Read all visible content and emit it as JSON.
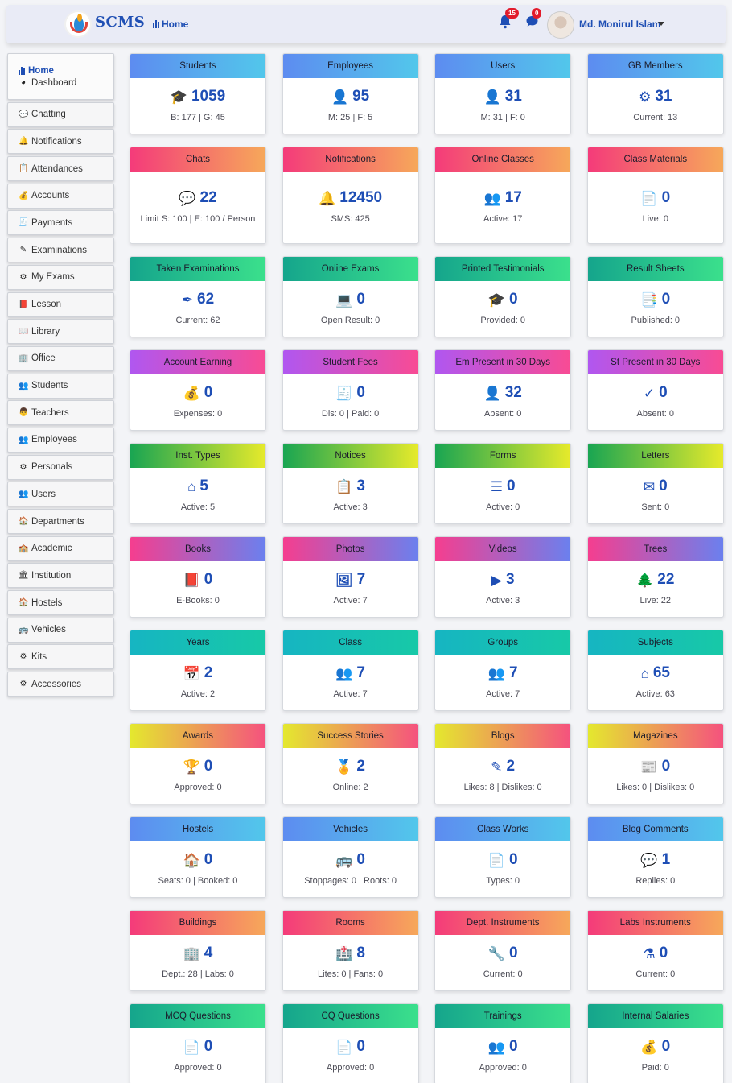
{
  "header": {
    "brand": "SCMS",
    "home_label": "Home",
    "notification_count": "15",
    "message_count": "0",
    "user_name": "Md. Monirul Islam"
  },
  "sidebar": {
    "home": "Home",
    "dashboard": "Dashboard",
    "items": [
      {
        "label": "Chatting",
        "icon": "chat-icon"
      },
      {
        "label": "Notifications",
        "icon": "bell-icon"
      },
      {
        "label": "Attendances",
        "icon": "clipboard-icon"
      },
      {
        "label": "Accounts",
        "icon": "money-bag-icon"
      },
      {
        "label": "Payments",
        "icon": "invoice-icon"
      },
      {
        "label": "Examinations",
        "icon": "pen-icon"
      },
      {
        "label": "My Exams",
        "icon": "user-gear-icon"
      },
      {
        "label": "Lesson",
        "icon": "book-icon"
      },
      {
        "label": "Library",
        "icon": "open-book-icon"
      },
      {
        "label": "Office",
        "icon": "building-icon"
      },
      {
        "label": "Students",
        "icon": "students-icon"
      },
      {
        "label": "Teachers",
        "icon": "teacher-icon"
      },
      {
        "label": "Employees",
        "icon": "employees-icon"
      },
      {
        "label": "Personals",
        "icon": "user-cog-icon"
      },
      {
        "label": "Users",
        "icon": "users-icon"
      },
      {
        "label": "Departments",
        "icon": "house-icon"
      },
      {
        "label": "Academic",
        "icon": "school-icon"
      },
      {
        "label": "Institution",
        "icon": "institution-icon"
      },
      {
        "label": "Hostels",
        "icon": "hostel-icon"
      },
      {
        "label": "Vehicles",
        "icon": "bus-icon"
      },
      {
        "label": "Kits",
        "icon": "gear-icon"
      },
      {
        "label": "Accessories",
        "icon": "cog-icon"
      }
    ]
  },
  "cards": [
    {
      "title": "Students",
      "value": "1059",
      "sub": "B: 177 | G: 45",
      "icon": "graduate-icon",
      "glyph": "🎓",
      "color": "g-blue"
    },
    {
      "title": "Employees",
      "value": "95",
      "sub": "M: 25 | F: 5",
      "icon": "user-icon",
      "glyph": "👤",
      "color": "g-blue"
    },
    {
      "title": "Users",
      "value": "31",
      "sub": "M: 31 | F: 0",
      "icon": "user-icon",
      "glyph": "👤",
      "color": "g-blue"
    },
    {
      "title": "GB Members",
      "value": "31",
      "sub": "Current: 13",
      "icon": "user-gear-icon",
      "glyph": "⚙",
      "color": "g-blue"
    },
    {
      "title": "Chats",
      "value": "22",
      "sub": "Limit S: 100 | E: 100 / Person",
      "icon": "chat-icon",
      "glyph": "💬",
      "color": "g-pink"
    },
    {
      "title": "Notifications",
      "value": "12450",
      "sub": "SMS: 425",
      "icon": "bell-icon",
      "glyph": "🔔",
      "color": "g-pink"
    },
    {
      "title": "Online Classes",
      "value": "17",
      "sub": "Active: 17",
      "icon": "class-icon",
      "glyph": "👥",
      "color": "g-pink"
    },
    {
      "title": "Class Materials",
      "value": "0",
      "sub": "Live: 0",
      "icon": "file-icon",
      "glyph": "📄",
      "color": "g-pink"
    },
    {
      "title": "Taken Examinations",
      "value": "62",
      "sub": "Current: 62",
      "icon": "pen-icon",
      "glyph": "✒",
      "color": "g-green"
    },
    {
      "title": "Online Exams",
      "value": "0",
      "sub": "Open Result: 0",
      "icon": "laptop-icon",
      "glyph": "💻",
      "color": "g-green"
    },
    {
      "title": "Printed Testimonials",
      "value": "0",
      "sub": "Provided: 0",
      "icon": "graduation-cap-icon",
      "glyph": "🎓",
      "color": "g-green"
    },
    {
      "title": "Result Sheets",
      "value": "0",
      "sub": "Published: 0",
      "icon": "file-shield-icon",
      "glyph": "📑",
      "color": "g-green"
    },
    {
      "title": "Account Earning",
      "value": "0",
      "sub": "Expenses: 0",
      "icon": "money-bag-icon",
      "glyph": "💰",
      "color": "g-purple"
    },
    {
      "title": "Student Fees",
      "value": "0",
      "sub": "Dis: 0 | Paid: 0",
      "icon": "invoice-icon",
      "glyph": "🧾",
      "color": "g-purple"
    },
    {
      "title": "Em Present in 30 Days",
      "value": "32",
      "sub": "Absent: 0",
      "icon": "user-check-icon",
      "glyph": "👤",
      "color": "g-purple"
    },
    {
      "title": "St Present in 30 Days",
      "value": "0",
      "sub": "Absent: 0",
      "icon": "check-icon",
      "glyph": "✓",
      "color": "g-purple"
    },
    {
      "title": "Inst. Types",
      "value": "5",
      "sub": "Active: 5",
      "icon": "school-icon",
      "glyph": "⌂",
      "color": "g-lime"
    },
    {
      "title": "Notices",
      "value": "3",
      "sub": "Active: 3",
      "icon": "clipboard-icon",
      "glyph": "📋",
      "color": "g-lime"
    },
    {
      "title": "Forms",
      "value": "0",
      "sub": "Active: 0",
      "icon": "list-icon",
      "glyph": "☰",
      "color": "g-lime"
    },
    {
      "title": "Letters",
      "value": "0",
      "sub": "Sent: 0",
      "icon": "envelope-icon",
      "glyph": "✉",
      "color": "g-lime"
    },
    {
      "title": "Books",
      "value": "0",
      "sub": "E-Books: 0",
      "icon": "book-icon",
      "glyph": "📕",
      "color": "g-pinkblue"
    },
    {
      "title": "Photos",
      "value": "7",
      "sub": "Active: 7",
      "icon": "image-icon",
      "glyph": "🖼",
      "color": "g-pinkblue"
    },
    {
      "title": "Videos",
      "value": "3",
      "sub": "Active: 3",
      "icon": "video-icon",
      "glyph": "▶",
      "color": "g-pinkblue"
    },
    {
      "title": "Trees",
      "value": "22",
      "sub": "Live: 22",
      "icon": "tree-icon",
      "glyph": "🌲",
      "color": "g-pinkblue"
    },
    {
      "title": "Years",
      "value": "2",
      "sub": "Active: 2",
      "icon": "calendar-icon",
      "glyph": "📅",
      "color": "g-teal"
    },
    {
      "title": "Class",
      "value": "7",
      "sub": "Active: 7",
      "icon": "users-icon",
      "glyph": "👥",
      "color": "g-teal"
    },
    {
      "title": "Groups",
      "value": "7",
      "sub": "Active: 7",
      "icon": "group-icon",
      "glyph": "👥",
      "color": "g-teal"
    },
    {
      "title": "Subjects",
      "value": "65",
      "sub": "Active: 63",
      "icon": "school-icon",
      "glyph": "⌂",
      "color": "g-teal"
    },
    {
      "title": "Awards",
      "value": "0",
      "sub": "Approved: 0",
      "icon": "trophy-icon",
      "glyph": "🏆",
      "color": "g-yelpink"
    },
    {
      "title": "Success Stories",
      "value": "2",
      "sub": "Online: 2",
      "icon": "medal-icon",
      "glyph": "🏅",
      "color": "g-yelpink"
    },
    {
      "title": "Blogs",
      "value": "2",
      "sub": "Likes: 8 | Dislikes: 0",
      "icon": "blog-icon",
      "glyph": "✎",
      "color": "g-yelpink"
    },
    {
      "title": "Magazines",
      "value": "0",
      "sub": "Likes: 0 | Dislikes: 0",
      "icon": "newspaper-icon",
      "glyph": "📰",
      "color": "g-yelpink"
    },
    {
      "title": "Hostels",
      "value": "0",
      "sub": "Seats: 0 | Booked: 0",
      "icon": "hostel-icon",
      "glyph": "🏠",
      "color": "g-blue"
    },
    {
      "title": "Vehicles",
      "value": "0",
      "sub": "Stoppages: 0 | Roots: 0",
      "icon": "bus-icon",
      "glyph": "🚌",
      "color": "g-blue"
    },
    {
      "title": "Class Works",
      "value": "0",
      "sub": "Types: 0",
      "icon": "file-lines-icon",
      "glyph": "📄",
      "color": "g-blue"
    },
    {
      "title": "Blog Comments",
      "value": "1",
      "sub": "Replies: 0",
      "icon": "comment-icon",
      "glyph": "💬",
      "color": "g-blue"
    },
    {
      "title": "Buildings",
      "value": "4",
      "sub": "Dept.: 28 | Labs: 0",
      "icon": "city-icon",
      "glyph": "🏢",
      "color": "g-pink"
    },
    {
      "title": "Rooms",
      "value": "8",
      "sub": "Lites: 0 | Fans: 0",
      "icon": "hospital-icon",
      "glyph": "🏥",
      "color": "g-pink"
    },
    {
      "title": "Dept. Instruments",
      "value": "0",
      "sub": "Current: 0",
      "icon": "tools-icon",
      "glyph": "🔧",
      "color": "g-pink"
    },
    {
      "title": "Labs Instruments",
      "value": "0",
      "sub": "Current: 0",
      "icon": "flask-icon",
      "glyph": "⚗",
      "color": "g-pink"
    },
    {
      "title": "MCQ Questions",
      "value": "0",
      "sub": "Approved: 0",
      "icon": "file-question-icon",
      "glyph": "📄",
      "color": "g-green"
    },
    {
      "title": "CQ Questions",
      "value": "0",
      "sub": "Approved: 0",
      "icon": "file-plus-icon",
      "glyph": "📄",
      "color": "g-green"
    },
    {
      "title": "Trainings",
      "value": "0",
      "sub": "Approved: 0",
      "icon": "class-icon",
      "glyph": "👥",
      "color": "g-green"
    },
    {
      "title": "Internal Salaries",
      "value": "0",
      "sub": "Paid: 0",
      "icon": "money-bag-icon",
      "glyph": "💰",
      "color": "g-green"
    }
  ]
}
